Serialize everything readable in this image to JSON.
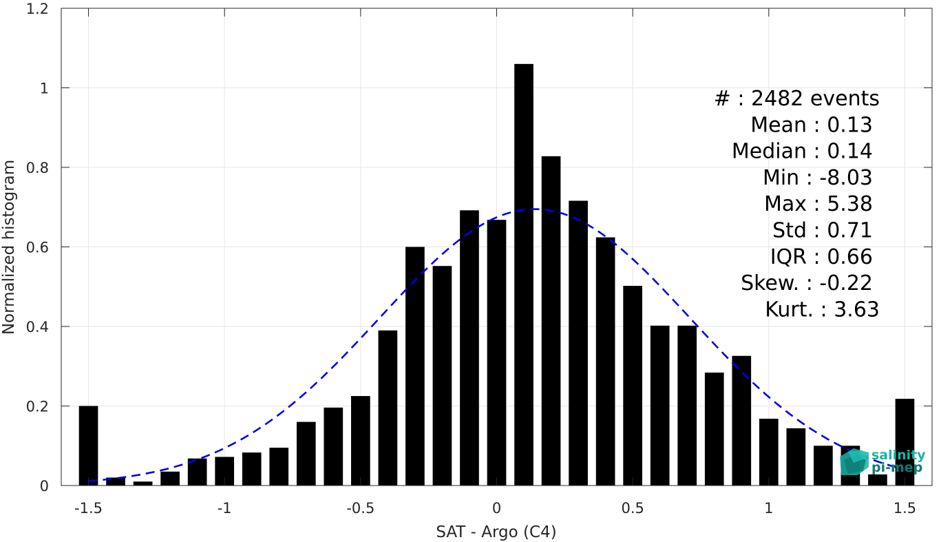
{
  "chart_data": {
    "type": "bar",
    "xlabel": "SAT - Argo (C4)",
    "ylabel": "Normalized histogram",
    "xlim": [
      -1.6,
      1.6
    ],
    "ylim": [
      0,
      1.2
    ],
    "grid": true,
    "xticks": [
      -1.5,
      -1,
      -0.5,
      0,
      0.5,
      1,
      1.5
    ],
    "xtick_labels": [
      "-1.5",
      "-1",
      "-0.5",
      "0",
      "0.5",
      "1",
      "1.5"
    ],
    "yticks": [
      0,
      0.2,
      0.4,
      0.6,
      0.8,
      1,
      1.2
    ],
    "ytick_labels": [
      "0",
      "0.2",
      "0.4",
      "0.6",
      "0.8",
      "1",
      "1.2"
    ],
    "bar_color": "#000000",
    "bins": [
      -1.5,
      -1.4,
      -1.3,
      -1.2,
      -1.1,
      -1.0,
      -0.9,
      -0.8,
      -0.7,
      -0.6,
      -0.5,
      -0.4,
      -0.3,
      -0.2,
      -0.1,
      0.0,
      0.1,
      0.2,
      0.3,
      0.4,
      0.5,
      0.6,
      0.7,
      0.8,
      0.9,
      1.0,
      1.1,
      1.2,
      1.3,
      1.4,
      1.5
    ],
    "values": [
      0.2,
      0.02,
      0.01,
      0.035,
      0.068,
      0.072,
      0.083,
      0.095,
      0.16,
      0.196,
      0.225,
      0.39,
      0.6,
      0.552,
      0.692,
      0.668,
      1.06,
      0.828,
      0.716,
      0.624,
      0.502,
      0.402,
      0.402,
      0.284,
      0.326,
      0.168,
      0.144,
      0.1,
      0.1,
      0.028,
      0.218
    ],
    "fit": {
      "type": "gaussian",
      "mean": 0.14,
      "std": 0.57,
      "peak": 0.695,
      "range": [
        -1.5,
        1.5
      ],
      "color": "#0000ee",
      "style": "dashed"
    },
    "stats": [
      {
        "label": "#  : 2482 events"
      },
      {
        "label": "Mean : 0.13"
      },
      {
        "label": "Median : 0.14"
      },
      {
        "label": "Min : -8.03"
      },
      {
        "label": "Max : 5.38"
      },
      {
        "label": "Std : 0.71"
      },
      {
        "label": "IQR : 0.66"
      },
      {
        "label": "Skew. : -0.22"
      },
      {
        "label": "Kurt. : 3.63"
      }
    ]
  },
  "logo": {
    "line1": "salinity",
    "line2": "pi-mep",
    "color1": "#19b3a6",
    "color2": "#0e7c74"
  }
}
